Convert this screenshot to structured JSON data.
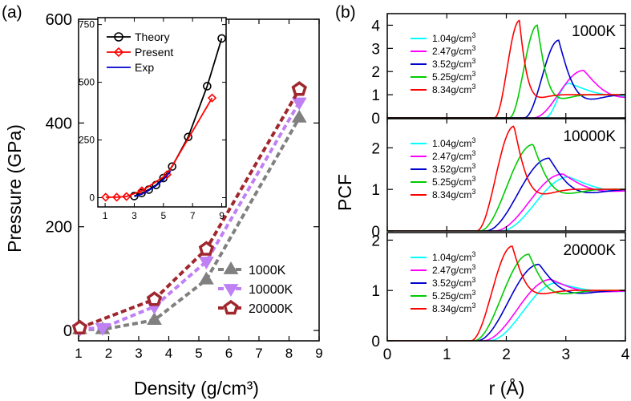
{
  "figure": {
    "panel_a_label": "(a)",
    "panel_b_label": "(b)"
  },
  "chart_data": [
    {
      "id": "main",
      "type": "line",
      "title": "",
      "xlabel": "Density (g/cm³)",
      "ylabel": "Pressure (GPa)",
      "xlim": [
        1,
        9
      ],
      "ylim": [
        -20,
        600
      ],
      "xticks": [
        1,
        2,
        3,
        4,
        5,
        6,
        7,
        8,
        9
      ],
      "yticks": [
        0,
        200,
        400,
        600
      ],
      "legend": "bottom-right",
      "series": [
        {
          "name": "1000K",
          "color": "#808080",
          "marker": "triangle-up",
          "style": "dashed",
          "x": [
            1.04,
            1.8,
            3.52,
            5.25,
            8.34
          ],
          "y": [
            2,
            2,
            20,
            98,
            410
          ]
        },
        {
          "name": "10000K",
          "color": "#bf80f4",
          "marker": "triangle-down",
          "style": "dashed",
          "x": [
            1.04,
            1.8,
            3.52,
            5.25,
            8.34
          ],
          "y": [
            3,
            5,
            46,
            133,
            440
          ]
        },
        {
          "name": "20000K",
          "color": "#a0272d",
          "marker": "pentagon",
          "style": "dashed",
          "x": [
            1.04,
            3.52,
            5.25,
            8.34
          ],
          "y": [
            5,
            60,
            157,
            465
          ]
        }
      ]
    },
    {
      "id": "inset",
      "type": "line",
      "xlim": [
        0.5,
        9.3
      ],
      "ylim": [
        -40,
        780
      ],
      "xticks": [
        1,
        3,
        5,
        7,
        9
      ],
      "yticks": [
        0,
        250,
        500,
        750
      ],
      "legend": "top-left",
      "series": [
        {
          "name": "Theory",
          "color": "#000000",
          "marker": "circle",
          "x": [
            3.0,
            3.5,
            4.0,
            4.5,
            5.0,
            5.6,
            6.7,
            8.0,
            9.0
          ],
          "y": [
            7,
            20,
            35,
            55,
            85,
            135,
            263,
            483,
            690
          ]
        },
        {
          "name": "Present",
          "color": "#ff0000",
          "marker": "diamond",
          "x": [
            1.04,
            1.8,
            2.47,
            3.52,
            5.25,
            8.34
          ],
          "y": [
            2,
            2,
            5,
            30,
            100,
            432
          ]
        },
        {
          "name": "Exp",
          "color": "#0000cc",
          "marker": "none",
          "x": [
            3.0,
            3.5,
            4.0,
            4.5,
            5.0,
            5.5
          ],
          "y": [
            5,
            15,
            32,
            52,
            78,
            115
          ]
        }
      ]
    },
    {
      "id": "pcf",
      "type": "line",
      "ylabel": "PCF",
      "xlabel": "r (Å)",
      "xlim": [
        0,
        4
      ],
      "xticks": [
        0,
        1,
        2,
        3,
        4
      ],
      "legend_entries": [
        {
          "label": "1.04g/cm³",
          "color": "#00ffff"
        },
        {
          "label": "2.47g/cm³",
          "color": "#ff00ff"
        },
        {
          "label": "3.52g/cm³",
          "color": "#0000cc"
        },
        {
          "label": "5.25g/cm³",
          "color": "#00cc00"
        },
        {
          "label": "8.34g/cm³",
          "color": "#ff0000"
        }
      ],
      "panels": [
        {
          "temperature": "1000K",
          "ylim": [
            0,
            4.5
          ],
          "yticks": [
            0,
            1,
            2,
            3,
            4
          ],
          "peaks": [
            {
              "r0": 2.65,
              "p": 3.05,
              "h": 1.5,
              "w": 0.55
            },
            {
              "r0": 2.45,
              "p": 3.3,
              "h": 2.05,
              "w": 0.38
            },
            {
              "r0": 2.3,
              "p": 2.88,
              "h": 3.35,
              "w": 0.25
            },
            {
              "r0": 2.05,
              "p": 2.52,
              "h": 4.0,
              "w": 0.17
            },
            {
              "r0": 1.8,
              "p": 2.22,
              "h": 4.2,
              "w": 0.13
            }
          ]
        },
        {
          "temperature": "10000K",
          "ylim": [
            0,
            2.7
          ],
          "yticks": [
            0,
            1,
            2
          ],
          "peaks": [
            {
              "r0": 1.9,
              "p": 3.05,
              "h": 1.3,
              "w": 0.55
            },
            {
              "r0": 1.8,
              "p": 2.95,
              "h": 1.37,
              "w": 0.45
            },
            {
              "r0": 1.65,
              "p": 2.72,
              "h": 1.75,
              "w": 0.35
            },
            {
              "r0": 1.55,
              "p": 2.45,
              "h": 2.08,
              "w": 0.28
            },
            {
              "r0": 1.5,
              "p": 2.13,
              "h": 2.52,
              "w": 0.22
            }
          ]
        },
        {
          "temperature": "20000K",
          "ylim": [
            0,
            2.15
          ],
          "yticks": [
            0,
            1,
            2
          ],
          "peaks": [
            {
              "r0": 1.7,
              "p": 2.85,
              "h": 1.15,
              "w": 0.55
            },
            {
              "r0": 1.6,
              "p": 2.75,
              "h": 1.22,
              "w": 0.45
            },
            {
              "r0": 1.5,
              "p": 2.55,
              "h": 1.52,
              "w": 0.35
            },
            {
              "r0": 1.45,
              "p": 2.38,
              "h": 1.72,
              "w": 0.28
            },
            {
              "r0": 1.4,
              "p": 2.1,
              "h": 1.88,
              "w": 0.22
            }
          ]
        }
      ]
    }
  ]
}
